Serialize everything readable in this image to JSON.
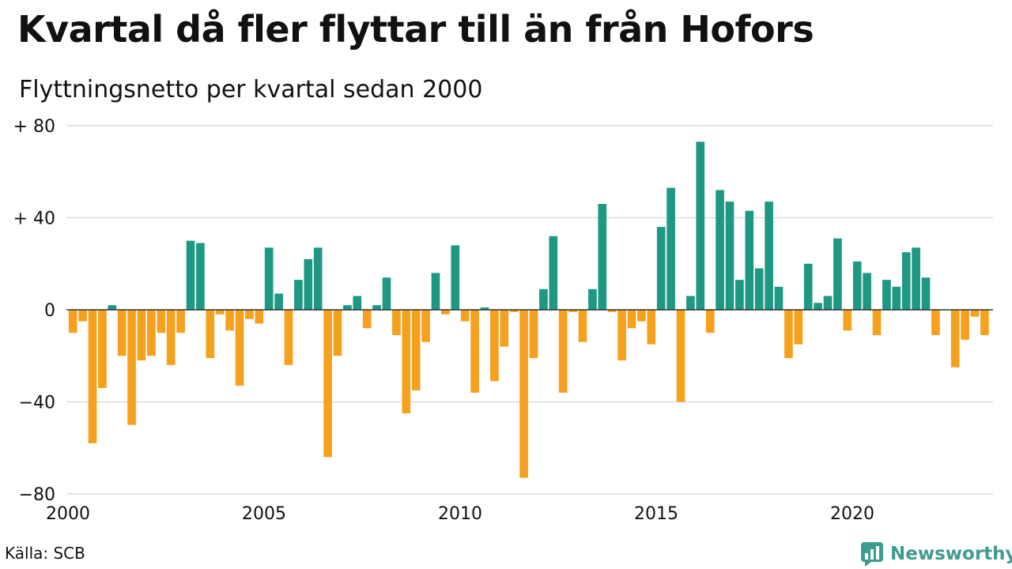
{
  "title": "Kvartal då fler flyttar till än från Hofors",
  "subtitle": "Flyttningsnetto per kvartal sedan 2000",
  "source": "Källa: SCB",
  "brand": {
    "name": "Newsworthy",
    "icon": "newsworthy-logo-icon",
    "color": "#3e9b8f"
  },
  "colors": {
    "positive": "#1e9783",
    "negative": "#f5a11d",
    "grid": "#dddddd",
    "zero_line": "#333333"
  },
  "chart_data": {
    "type": "bar",
    "title": "Kvartal då fler flyttar till än från Hofors",
    "subtitle": "Flyttningsnetto per kvartal sedan 2000",
    "x_start": "2000-Q1",
    "x_ticks": [
      "2000",
      "2005",
      "2010",
      "2015",
      "2020"
    ],
    "y_ticks": [
      "+ 80",
      "+ 40",
      "0",
      "−40",
      "−80"
    ],
    "ylim": [
      -80,
      80
    ],
    "grid": true,
    "values": [
      -10,
      -5,
      -58,
      -34,
      2,
      -20,
      -50,
      -22,
      -20,
      -10,
      -24,
      -10,
      30,
      29,
      -21,
      -2,
      -9,
      -33,
      -4,
      -6,
      27,
      7,
      -24,
      13,
      22,
      27,
      -64,
      -20,
      2,
      6,
      -8,
      2,
      14,
      -11,
      -45,
      -35,
      -14,
      16,
      -2,
      28,
      -5,
      -36,
      1,
      -31,
      -16,
      -1,
      -73,
      -21,
      9,
      32,
      -36,
      -1,
      -14,
      9,
      46,
      -1,
      -22,
      -8,
      -5,
      -15,
      36,
      53,
      -40,
      6,
      73,
      -10,
      52,
      47,
      13,
      43,
      18,
      47,
      10,
      -21,
      -15,
      20,
      3,
      6,
      31,
      -9,
      21,
      16,
      -11,
      13,
      10,
      25,
      27,
      14,
      -11,
      0,
      -25,
      -13,
      -3,
      -11
    ]
  }
}
